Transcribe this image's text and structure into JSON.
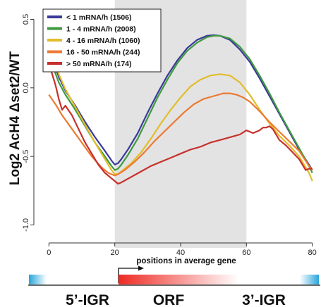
{
  "chart_data": {
    "type": "line",
    "title": "",
    "xlabel": "positions in average gene",
    "ylabel": "Log2 AcH4 Δset2/WT",
    "xlim": [
      -2,
      82
    ],
    "ylim": [
      -1.08,
      0.6
    ],
    "xticks": [
      "0",
      "20",
      "40",
      "60",
      "80"
    ],
    "yticks": [
      "-1.0",
      "-0.5",
      "0.0",
      "0.5"
    ],
    "shaded_region_x": [
      20,
      60
    ],
    "grid": false,
    "legend_position": "top-left",
    "series": [
      {
        "name": "< 1 mRNA/h (1506)",
        "color": "#3a3a9a",
        "x": [
          0,
          1,
          3,
          5,
          8,
          11,
          14,
          17,
          19,
          20,
          21,
          22,
          24,
          27,
          30,
          33,
          36,
          39,
          42,
          45,
          48,
          50,
          52,
          55,
          58,
          61,
          64,
          67,
          70,
          73,
          76,
          79,
          80
        ],
        "y": [
          0.3,
          0.22,
          0.08,
          -0.02,
          -0.13,
          -0.25,
          -0.36,
          -0.46,
          -0.53,
          -0.56,
          -0.55,
          -0.52,
          -0.45,
          -0.33,
          -0.18,
          -0.04,
          0.09,
          0.2,
          0.29,
          0.35,
          0.38,
          0.385,
          0.38,
          0.35,
          0.28,
          0.19,
          0.07,
          -0.06,
          -0.19,
          -0.32,
          -0.45,
          -0.56,
          -0.6
        ]
      },
      {
        "name": "1 - 4 mRNA/h (2008)",
        "color": "#3f9a3f",
        "x": [
          0,
          1,
          3,
          5,
          8,
          11,
          14,
          17,
          19,
          20,
          21,
          22,
          24,
          27,
          30,
          33,
          36,
          39,
          42,
          45,
          48,
          50,
          52,
          55,
          58,
          61,
          64,
          67,
          70,
          73,
          76,
          79,
          80
        ],
        "y": [
          0.25,
          0.17,
          0.04,
          -0.05,
          -0.16,
          -0.28,
          -0.4,
          -0.5,
          -0.57,
          -0.6,
          -0.59,
          -0.56,
          -0.49,
          -0.37,
          -0.22,
          -0.07,
          0.06,
          0.18,
          0.27,
          0.33,
          0.37,
          0.38,
          0.38,
          0.36,
          0.3,
          0.21,
          0.09,
          -0.04,
          -0.18,
          -0.31,
          -0.44,
          -0.57,
          -0.62
        ]
      },
      {
        "name": "4 - 16 mRNA/h (1060)",
        "color": "#e2bd2b",
        "x": [
          0,
          1,
          3,
          5,
          8,
          11,
          14,
          17,
          19,
          20,
          21,
          22,
          25,
          28,
          31,
          34,
          37,
          40,
          43,
          46,
          49,
          52,
          55,
          58,
          61,
          64,
          67,
          70,
          73,
          76,
          79,
          80
        ],
        "y": [
          0.33,
          0.25,
          0.1,
          -0.01,
          -0.14,
          -0.27,
          -0.4,
          -0.52,
          -0.6,
          -0.63,
          -0.63,
          -0.61,
          -0.55,
          -0.47,
          -0.37,
          -0.26,
          -0.16,
          -0.07,
          0.01,
          0.06,
          0.09,
          0.1,
          0.09,
          0.04,
          -0.05,
          -0.16,
          -0.26,
          -0.35,
          -0.42,
          -0.5,
          -0.62,
          -0.68
        ]
      },
      {
        "name": "16 - 50 mRNA/h (244)",
        "color": "#ec7a32",
        "x": [
          0,
          2,
          4,
          7,
          10,
          13,
          16,
          18,
          20,
          21,
          23,
          26,
          29,
          32,
          35,
          38,
          41,
          44,
          47,
          50,
          53,
          55,
          57,
          59,
          61,
          64,
          67,
          70,
          73,
          76,
          79,
          80
        ],
        "y": [
          -0.05,
          -0.12,
          -0.2,
          -0.3,
          -0.4,
          -0.5,
          -0.58,
          -0.62,
          -0.64,
          -0.63,
          -0.6,
          -0.54,
          -0.47,
          -0.39,
          -0.32,
          -0.25,
          -0.18,
          -0.12,
          -0.08,
          -0.06,
          -0.04,
          -0.04,
          -0.05,
          -0.07,
          -0.1,
          -0.17,
          -0.25,
          -0.32,
          -0.39,
          -0.46,
          -0.57,
          -0.6
        ]
      },
      {
        "name": "> 50 mRNA/h (174)",
        "color": "#c8302b",
        "x": [
          0,
          1,
          2,
          3,
          4,
          5,
          7,
          9,
          11,
          13,
          15,
          17,
          19,
          20,
          21,
          22,
          25,
          28,
          31,
          34,
          37,
          40,
          43,
          46,
          49,
          52,
          55,
          58,
          60,
          62,
          64,
          65,
          66,
          67,
          68,
          70,
          72,
          74,
          76,
          77,
          78,
          79,
          80
        ],
        "y": [
          0.18,
          0.1,
          0.02,
          -0.08,
          -0.16,
          -0.13,
          -0.2,
          -0.3,
          -0.4,
          -0.48,
          -0.56,
          -0.62,
          -0.66,
          -0.68,
          -0.7,
          -0.69,
          -0.65,
          -0.61,
          -0.57,
          -0.54,
          -0.51,
          -0.48,
          -0.45,
          -0.43,
          -0.4,
          -0.38,
          -0.36,
          -0.34,
          -0.31,
          -0.33,
          -0.31,
          -0.29,
          -0.29,
          -0.28,
          -0.3,
          -0.38,
          -0.42,
          -0.47,
          -0.52,
          -0.56,
          -0.6,
          -0.59,
          -0.59
        ]
      }
    ]
  },
  "gene_diagram": {
    "labels": [
      "5’-IGR",
      "ORF",
      "3’-IGR"
    ],
    "arrow": "→"
  },
  "colors": {
    "shade": "#e3e3e3",
    "igr_gradient": [
      "#2aa6db",
      "#ffffff"
    ],
    "orf_gradient": [
      "#ee2a24",
      "#ffffff"
    ]
  }
}
